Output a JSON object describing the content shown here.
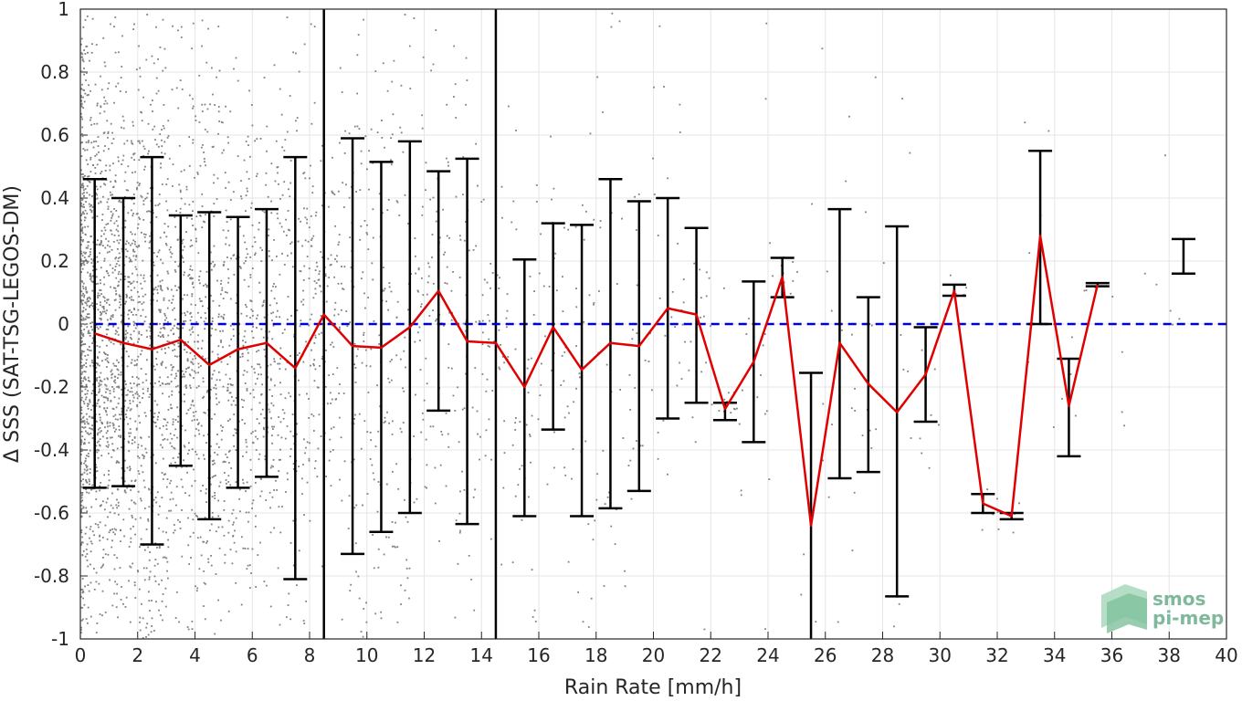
{
  "chart_data": {
    "type": "scatter",
    "xlabel": "Rain Rate [mm/h]",
    "ylabel": "Δ SSS (SAT-TSG-LEGOS-DM)",
    "xlim": [
      0,
      40
    ],
    "ylim": [
      -1,
      1
    ],
    "xticks": [
      "0",
      "2",
      "4",
      "6",
      "8",
      "10",
      "12",
      "14",
      "16",
      "18",
      "20",
      "22",
      "24",
      "26",
      "28",
      "30",
      "32",
      "34",
      "36",
      "38",
      "40"
    ],
    "yticks": [
      "1",
      "0.8",
      "0.6",
      "0.4",
      "0.2",
      "0",
      "-0.2",
      "-0.4",
      "-0.6",
      "-0.8",
      "-1"
    ],
    "grid": true,
    "vertical_lines_x": [
      8.5,
      14.5
    ],
    "reference_line": {
      "y": 0,
      "style": "dashed",
      "color": "#0000cc"
    },
    "series": [
      {
        "type": "errorbar_line",
        "line_color": "#e00000",
        "errorbar_color": "#000000",
        "x": [
          0.5,
          1.5,
          2.5,
          3.5,
          4.5,
          5.5,
          6.5,
          7.5,
          8.5,
          9.5,
          10.5,
          11.5,
          12.5,
          13.5,
          14.5,
          15.5,
          16.5,
          17.5,
          18.5,
          19.5,
          20.5,
          21.5,
          22.5,
          23.5,
          24.5,
          25.5,
          26.5,
          27.5,
          28.5,
          29.5,
          30.5,
          31.5,
          32.5,
          33.5,
          34.5,
          35.5,
          38.5
        ],
        "y": [
          -0.03,
          -0.06,
          -0.08,
          -0.05,
          -0.13,
          -0.08,
          -0.06,
          -0.14,
          0.03,
          -0.07,
          -0.075,
          -0.01,
          0.105,
          -0.055,
          -0.06,
          -0.2,
          -0.01,
          -0.145,
          -0.06,
          -0.07,
          0.05,
          0.03,
          -0.27,
          -0.12,
          0.15,
          -0.64,
          -0.06,
          -0.19,
          -0.28,
          -0.16,
          0.105,
          -0.57,
          -0.61,
          0.28,
          -0.26,
          0.125,
          null
        ],
        "upper": [
          0.46,
          0.4,
          0.53,
          0.345,
          0.355,
          0.34,
          0.365,
          0.53,
          null,
          0.59,
          0.515,
          0.58,
          0.485,
          0.525,
          null,
          0.205,
          0.32,
          0.315,
          0.46,
          0.39,
          0.4,
          0.305,
          -0.25,
          0.135,
          0.21,
          -0.155,
          0.365,
          0.085,
          0.31,
          -0.01,
          0.125,
          -0.54,
          -0.6,
          0.55,
          -0.11,
          0.13,
          0.27
        ],
        "lower": [
          -0.52,
          -0.515,
          -0.7,
          -0.45,
          -0.62,
          -0.52,
          -0.485,
          -0.81,
          null,
          -0.73,
          -0.66,
          -0.6,
          -0.275,
          -0.635,
          null,
          -0.61,
          -0.335,
          -0.61,
          -0.585,
          -0.53,
          -0.3,
          -0.25,
          -0.305,
          -0.375,
          0.085,
          -1.0,
          -0.49,
          -0.47,
          -0.865,
          -0.31,
          0.09,
          -0.6,
          -0.62,
          0.0,
          -0.42,
          0.12,
          0.16
        ]
      },
      {
        "type": "scatter_cloud",
        "color": "#808080"
      }
    ]
  },
  "logo": {
    "line1": "smos",
    "line2": "pi-mep"
  },
  "colors": {
    "grid": "#e6e6e6",
    "axes": "#262626",
    "scatter": "#808080",
    "mean_line": "#e00000",
    "errorbar": "#000000",
    "zero_line": "#0000cc"
  }
}
